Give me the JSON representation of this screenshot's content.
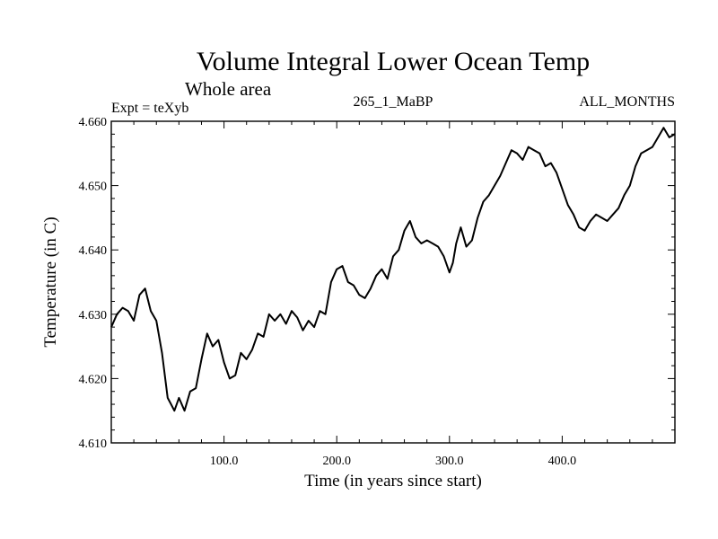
{
  "chart_data": {
    "type": "line",
    "title": "Volume Integral Lower Ocean Temp",
    "subtitle": "Whole area",
    "left_label": "Expt = teXyb",
    "center_label": "265_1_MaBP",
    "right_label": "ALL_MONTHS",
    "xlabel": "Time (in years since start)",
    "ylabel": "Temperature (in C)",
    "xlim": [
      0,
      500
    ],
    "ylim": [
      4.61,
      4.66
    ],
    "xticks": [
      100,
      200,
      300,
      400
    ],
    "xtick_labels": [
      "100.0",
      "200.0",
      "300.0",
      "400.0"
    ],
    "yticks": [
      4.61,
      4.62,
      4.63,
      4.64,
      4.65,
      4.66
    ],
    "ytick_labels": [
      "4.610",
      "4.620",
      "4.630",
      "4.640",
      "4.650",
      "4.660"
    ],
    "grid": false,
    "line_color": "#000000",
    "series": [
      {
        "x": [
          0,
          5,
          10,
          15,
          20,
          25,
          30,
          35,
          40,
          45,
          50,
          53,
          56,
          60,
          65,
          70,
          75,
          80,
          85,
          90,
          95,
          100,
          105,
          110,
          115,
          120,
          125,
          130,
          135,
          140,
          145,
          150,
          155,
          160,
          165,
          170,
          175,
          180,
          185,
          190,
          195,
          200,
          205,
          210,
          215,
          220,
          225,
          230,
          235,
          240,
          245,
          250,
          255,
          260,
          265,
          270,
          275,
          280,
          285,
          290,
          295,
          300,
          303,
          306,
          310,
          315,
          320,
          325,
          330,
          335,
          340,
          345,
          350,
          355,
          360,
          365,
          370,
          375,
          380,
          385,
          390,
          395,
          400,
          405,
          410,
          415,
          420,
          425,
          430,
          435,
          440,
          445,
          450,
          455,
          460,
          465,
          470,
          475,
          480,
          485,
          490,
          495,
          500
        ],
        "y": [
          4.628,
          4.63,
          4.631,
          4.6305,
          4.629,
          4.633,
          4.634,
          4.6305,
          4.629,
          4.624,
          4.617,
          4.616,
          4.615,
          4.617,
          4.615,
          4.618,
          4.6185,
          4.623,
          4.627,
          4.625,
          4.626,
          4.6225,
          4.62,
          4.6205,
          4.624,
          4.623,
          4.6245,
          4.627,
          4.6265,
          4.63,
          4.629,
          4.63,
          4.6285,
          4.6305,
          4.6295,
          4.6275,
          4.629,
          4.628,
          4.6305,
          4.63,
          4.635,
          4.637,
          4.6375,
          4.635,
          4.6345,
          4.633,
          4.6325,
          4.634,
          4.636,
          4.637,
          4.6355,
          4.639,
          4.64,
          4.643,
          4.6445,
          4.642,
          4.641,
          4.6415,
          4.641,
          4.6405,
          4.639,
          4.6365,
          4.638,
          4.641,
          4.6435,
          4.6405,
          4.6415,
          4.645,
          4.6475,
          4.6485,
          4.65,
          4.6515,
          4.6535,
          4.6555,
          4.655,
          4.654,
          4.656,
          4.6555,
          4.655,
          4.653,
          4.6535,
          4.652,
          4.6495,
          4.647,
          4.6455,
          4.6435,
          4.643,
          4.6445,
          4.6455,
          4.645,
          4.6445,
          4.6455,
          4.6465,
          4.6485,
          4.65,
          4.653,
          4.655,
          4.6555,
          4.656,
          4.6575,
          4.659,
          4.6575,
          4.658
        ]
      }
    ]
  }
}
